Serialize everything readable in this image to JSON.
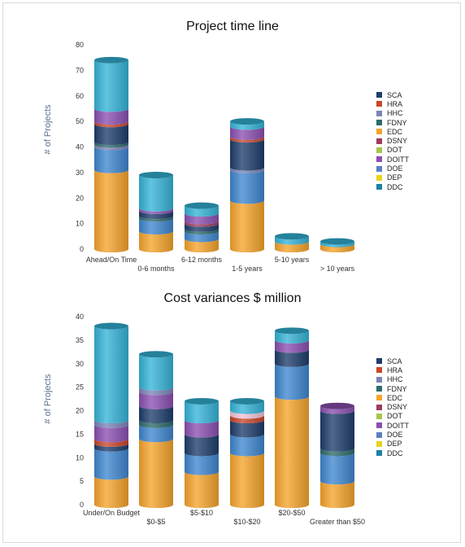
{
  "chart_data": [
    {
      "type": "bar",
      "stacked": true,
      "title": "Project time line",
      "ylabel": "# of Projects",
      "xlabel": "",
      "ylim": [
        0,
        80
      ],
      "yticks": [
        0,
        10,
        20,
        30,
        40,
        50,
        60,
        70,
        80
      ],
      "categories": [
        "Ahead/On Time",
        "0-6 months",
        "6-12 months",
        "1-5 years",
        "5-10 years",
        "> 10 years"
      ],
      "legend": [
        "SCA",
        "HRA",
        "HHC",
        "FDNY",
        "EDC",
        "DSNY",
        "DOT",
        "DOITT",
        "DOE",
        "DEP",
        "DDC"
      ],
      "legend_position": "right",
      "series": [
        {
          "name": "EDC",
          "color": "#f5a42c",
          "values": [
            31,
            7,
            4,
            19,
            3,
            2
          ]
        },
        {
          "name": "DDC",
          "color": "#3f86cf",
          "values": [
            9,
            5,
            3,
            12,
            0,
            0
          ]
        },
        {
          "name": "HHC",
          "color": "#7b84b8",
          "values": [
            1,
            0,
            0,
            1,
            0,
            0
          ]
        },
        {
          "name": "FDNY",
          "color": "#2c6b6a",
          "values": [
            1,
            1,
            1,
            0,
            0,
            0
          ]
        },
        {
          "name": "SCA",
          "color": "#1e3d6b",
          "values": [
            7,
            2,
            2,
            11,
            0,
            0
          ]
        },
        {
          "name": "HRA",
          "color": "#c8472a",
          "values": [
            1,
            0,
            0,
            1,
            0,
            0
          ]
        },
        {
          "name": "DSNY",
          "color": "#a03a62",
          "values": [
            0,
            0,
            1,
            0,
            0,
            0
          ]
        },
        {
          "name": "DOITT",
          "color": "#8a4fb1",
          "values": [
            5,
            1,
            3,
            4,
            0,
            0
          ]
        },
        {
          "name": "DOE",
          "color": "#34b3d7",
          "values": [
            19,
            13,
            3,
            2,
            2,
            1
          ]
        }
      ],
      "legend_colors": {
        "SCA": "#1e3d6b",
        "HRA": "#c8472a",
        "HHC": "#7b84b8",
        "FDNY": "#2c6b6a",
        "EDC": "#f5a42c",
        "DSNY": "#a03a62",
        "DOT": "#a6c64b",
        "DOITT": "#8a4fb1",
        "DOE": "#5a7fc0",
        "DEP": "#ecd21a",
        "DDC": "#1e7fa8"
      }
    },
    {
      "type": "bar",
      "stacked": true,
      "title": "Cost variances $ million",
      "ylabel": "# of Projects",
      "xlabel": "",
      "ylim": [
        0,
        40
      ],
      "yticks": [
        0,
        5,
        10,
        15,
        20,
        25,
        30,
        35,
        40
      ],
      "categories": [
        "Under/On Budget",
        "$0-$5",
        "$5-$10",
        "$10-$20",
        "$20-$50",
        "Greater than $50"
      ],
      "legend": [
        "SCA",
        "HRA",
        "HHC",
        "FDNY",
        "EDC",
        "DSNY",
        "DOT",
        "DOITT",
        "DOE",
        "DEP",
        "DDC"
      ],
      "legend_position": "right",
      "series": [
        {
          "name": "EDC",
          "color": "#f5a42c",
          "values": [
            6,
            14,
            7,
            11,
            23,
            5
          ]
        },
        {
          "name": "DDC",
          "color": "#3f86cf",
          "values": [
            6,
            3,
            4,
            4,
            7,
            6
          ]
        },
        {
          "name": "FDNY",
          "color": "#2c6b6a",
          "values": [
            0,
            1,
            0,
            0,
            0,
            1
          ]
        },
        {
          "name": "SCA",
          "color": "#1e3d6b",
          "values": [
            1,
            3,
            4,
            3,
            3,
            8
          ]
        },
        {
          "name": "HRA",
          "color": "#c8472a",
          "values": [
            1,
            0,
            0,
            1,
            0,
            0
          ]
        },
        {
          "name": "DEP",
          "color": "#f2c2d4",
          "values": [
            0,
            0,
            0,
            1,
            0,
            0
          ]
        },
        {
          "name": "DOITT",
          "color": "#8a4fb1",
          "values": [
            3,
            3,
            3,
            0,
            2,
            1
          ]
        },
        {
          "name": "HHC",
          "color": "#7b84b8",
          "values": [
            1,
            1,
            0,
            0,
            0,
            0
          ]
        },
        {
          "name": "DOE",
          "color": "#34b3d7",
          "values": [
            20,
            7,
            4,
            2,
            2,
            0
          ]
        }
      ],
      "legend_colors": {
        "SCA": "#1e3d6b",
        "HRA": "#c8472a",
        "HHC": "#7b84b8",
        "FDNY": "#2c6b6a",
        "EDC": "#f5a42c",
        "DSNY": "#a03a62",
        "DOT": "#a6c64b",
        "DOITT": "#8a4fb1",
        "DOE": "#5a7fc0",
        "DEP": "#ecd21a",
        "DDC": "#1e7fa8"
      }
    }
  ]
}
